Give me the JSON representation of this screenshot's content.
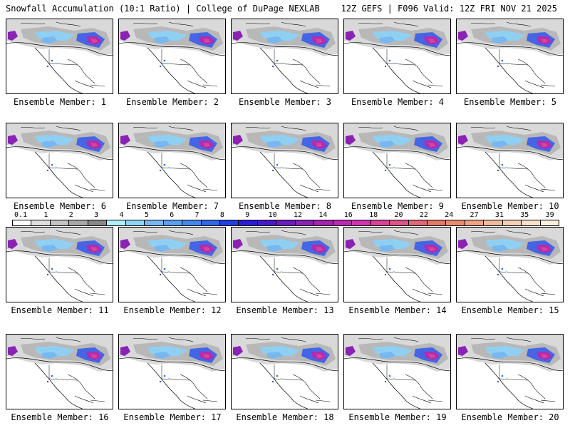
{
  "header": {
    "left_title": "Snowfall Accumulation (10:1 Ratio) | College of DuPage NEXLAB",
    "right_title": "12Z GEFS | F096 Valid: 12Z FRI NOV 21 2025"
  },
  "legend": {
    "ticks": [
      "0.1",
      "1",
      "2",
      "3",
      "4",
      "5",
      "6",
      "7",
      "8",
      "9",
      "10",
      "12",
      "14",
      "16",
      "18",
      "20",
      "22",
      "24",
      "27",
      "31",
      "35",
      "39"
    ],
    "colors": [
      "#ffffff",
      "#e0e0e0",
      "#c4c4c4",
      "#a8a8a8",
      "#888888",
      "#b0f0f8",
      "#90d4f4",
      "#78b8f0",
      "#5aa0ee",
      "#4488ee",
      "#3268e8",
      "#2040e0",
      "#2a1cd6",
      "#4a18c8",
      "#6a1cbc",
      "#8a22b4",
      "#a426b0",
      "#bc2cb0",
      "#d034b0",
      "#d84498",
      "#dc5488",
      "#e06878",
      "#e47868",
      "#e88c70",
      "#eca484",
      "#f0bc9c",
      "#f4d0b4",
      "#f8e2cc",
      "#fcf0e0"
    ]
  },
  "members": [
    {
      "label": "Ensemble Member: 1"
    },
    {
      "label": "Ensemble Member: 2"
    },
    {
      "label": "Ensemble Member: 3"
    },
    {
      "label": "Ensemble Member: 4"
    },
    {
      "label": "Ensemble Member: 5"
    },
    {
      "label": "Ensemble Member: 6"
    },
    {
      "label": "Ensemble Member: 7"
    },
    {
      "label": "Ensemble Member: 8"
    },
    {
      "label": "Ensemble Member: 9"
    },
    {
      "label": "Ensemble Member: 10"
    },
    {
      "label": "Ensemble Member: 11"
    },
    {
      "label": "Ensemble Member: 12"
    },
    {
      "label": "Ensemble Member: 13"
    },
    {
      "label": "Ensemble Member: 14"
    },
    {
      "label": "Ensemble Member: 15"
    },
    {
      "label": "Ensemble Member: 16"
    },
    {
      "label": "Ensemble Member: 17"
    },
    {
      "label": "Ensemble Member: 18"
    },
    {
      "label": "Ensemble Member: 19"
    },
    {
      "label": "Ensemble Member: 20"
    }
  ]
}
